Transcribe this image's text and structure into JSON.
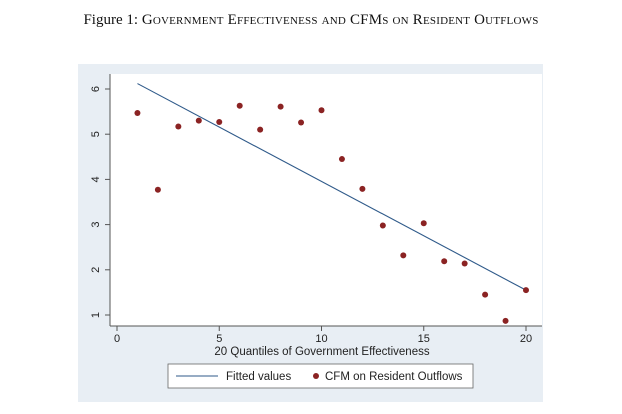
{
  "figure": {
    "label": "Figure 1:",
    "title": "Government Effectiveness and CFMs on Resident Outflows"
  },
  "chart_data": {
    "type": "scatter",
    "xlabel": "20 Quantiles of Government Effectiveness",
    "ylabel": "",
    "xlim": [
      0,
      20
    ],
    "ylim": [
      1,
      6
    ],
    "x_ticks": [
      "0",
      "5",
      "10",
      "15",
      "20"
    ],
    "y_ticks": [
      "1",
      "2",
      "3",
      "4",
      "5",
      "6"
    ],
    "grid": false,
    "legend_position": "bottom-center",
    "series": [
      {
        "name": "CFM on Resident Outflows",
        "type": "scatter",
        "color": "#8b2323",
        "x": [
          1,
          2,
          3,
          4,
          5,
          6,
          7,
          8,
          9,
          10,
          11,
          12,
          13,
          14,
          15,
          16,
          17,
          18,
          19,
          20
        ],
        "y": [
          5.47,
          3.77,
          5.17,
          5.3,
          5.27,
          5.63,
          5.1,
          5.61,
          5.26,
          5.53,
          4.45,
          3.79,
          2.98,
          2.32,
          3.03,
          2.19,
          2.14,
          1.45,
          0.87,
          1.55
        ]
      },
      {
        "name": "Fitted values",
        "type": "line",
        "color": "#2f5a8a",
        "x": [
          1,
          20
        ],
        "y": [
          6.12,
          1.55
        ]
      }
    ]
  },
  "colors": {
    "plot_region_bg": "#e8eef4",
    "plot_area_bg": "#ffffff",
    "axis": "#555555"
  }
}
